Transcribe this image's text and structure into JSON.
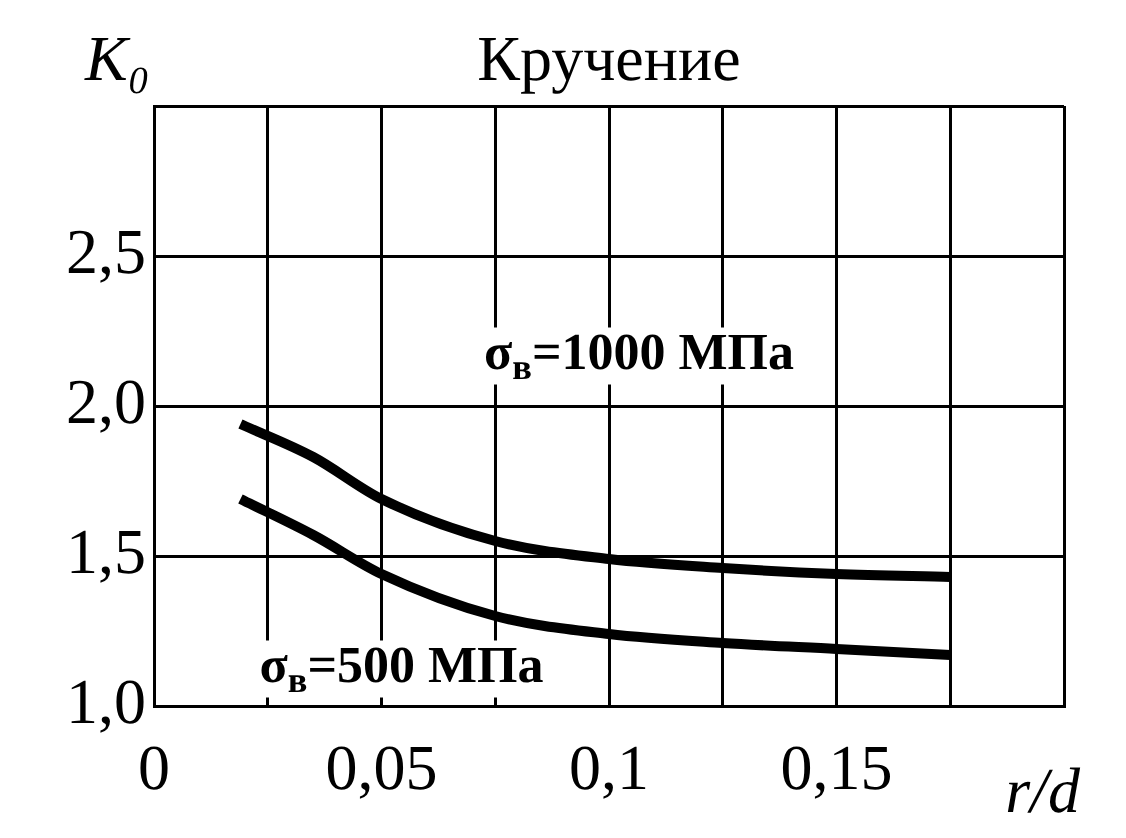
{
  "chart_data": {
    "type": "line",
    "title": "Кручение",
    "xlabel": "r/d",
    "ylabel": "K₀",
    "xlim": [
      0,
      0.2
    ],
    "xticks": [
      {
        "value": 0,
        "label": "0"
      },
      {
        "value": 0.025,
        "label": null
      },
      {
        "value": 0.05,
        "label": "0,05"
      },
      {
        "value": 0.075,
        "label": null
      },
      {
        "value": 0.1,
        "label": "0,1"
      },
      {
        "value": 0.125,
        "label": null
      },
      {
        "value": 0.15,
        "label": "0,15"
      },
      {
        "value": 0.175,
        "label": null
      },
      {
        "value": 0.2,
        "label": null
      }
    ],
    "ylim": [
      1,
      3
    ],
    "yticks": [
      {
        "value": 1,
        "label": "1,0"
      },
      {
        "value": 1.5,
        "label": "1,5"
      },
      {
        "value": 2,
        "label": "2,0"
      },
      {
        "value": 2.5,
        "label": "2,5"
      },
      {
        "value": 3,
        "label": null
      }
    ],
    "grid": true,
    "legend": false,
    "marker": "none",
    "line_style": "solid",
    "series": [
      {
        "name": "σ$_{в}$=1000 МПа",
        "color": "#000000",
        "x": [
          0.019,
          0.035,
          0.05,
          0.075,
          0.1,
          0.125,
          0.15,
          0.175
        ],
        "values": [
          1.94,
          1.83,
          1.69,
          1.55,
          1.49,
          1.46,
          1.44,
          1.43
        ]
      },
      {
        "name": "σ$_{в}$=500 МПа",
        "color": "#000000",
        "x": [
          0.019,
          0.035,
          0.05,
          0.075,
          0.1,
          0.125,
          0.15,
          0.175
        ],
        "values": [
          1.69,
          1.57,
          1.44,
          1.3,
          1.24,
          1.21,
          1.19,
          1.17
        ]
      }
    ]
  }
}
